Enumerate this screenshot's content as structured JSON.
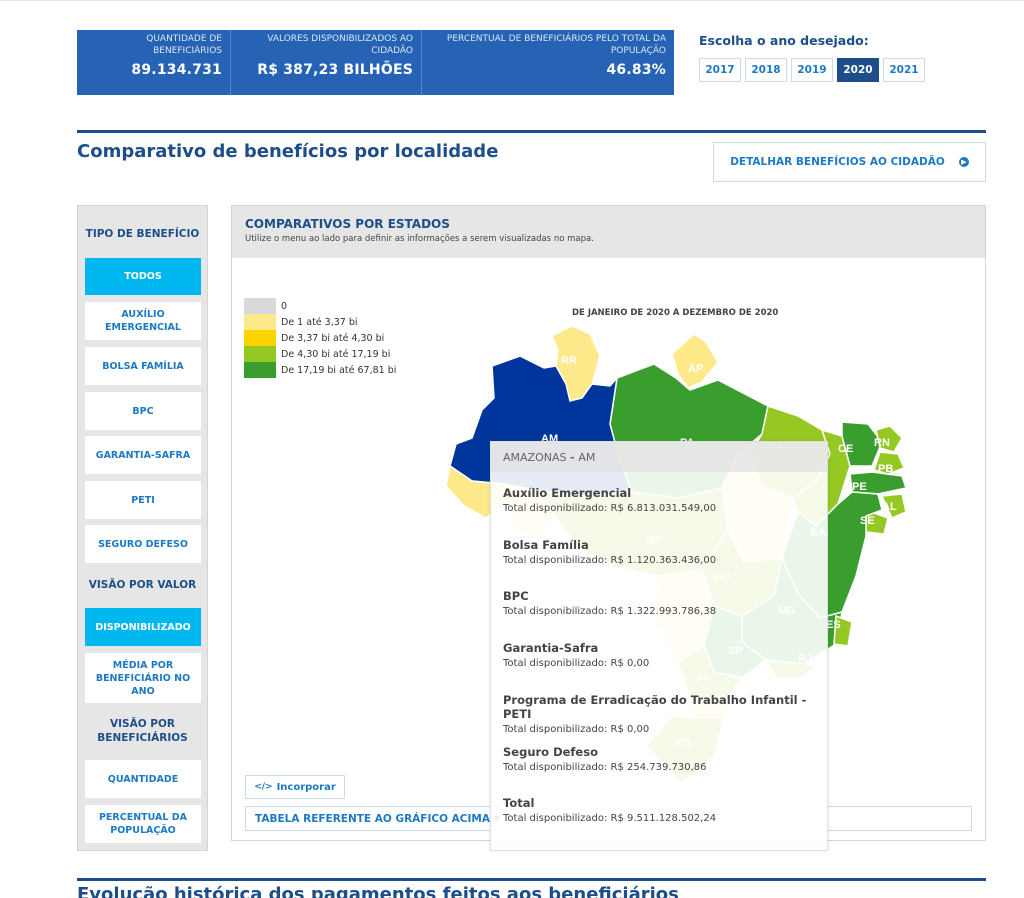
{
  "stats": [
    {
      "label": "QUANTIDADE DE BENEFICIÁRIOS",
      "value": "89.134.731"
    },
    {
      "label": "VALORES DISPONIBILIZADOS AO CIDADÃO",
      "value": "R$ 387,23 BILHÕES"
    },
    {
      "label": "PERCENTUAL DE BENEFICIÁRIOS PELO TOTAL DA POPULAÇÃO",
      "value": "46.83%"
    }
  ],
  "year_selector": {
    "title": "Escolha o ano desejado:",
    "years": [
      "2017",
      "2018",
      "2019",
      "2020",
      "2021"
    ],
    "selected": "2020"
  },
  "section": {
    "title": "Comparativo de benefícios por localidade",
    "detail_button": "DETALHAR BENEFÍCIOS AO CIDADÃO"
  },
  "sidebar": {
    "tipo_title": "TIPO DE BENEFÍCIO",
    "tipo_items": [
      "TODOS",
      "AUXÍLIO EMERGENCIAL",
      "BOLSA FAMÍLIA",
      "BPC",
      "GARANTIA-SAFRA",
      "PETI",
      "SEGURO DEFESO"
    ],
    "valor_title": "VISÃO POR VALOR",
    "valor_items": [
      "DISPONIBILIZADO",
      "MÉDIA POR BENEFICIÁRIO NO ANO"
    ],
    "benef_title": "VISÃO POR BENEFICIÁRIOS",
    "benef_items": [
      "QUANTIDADE",
      "PERCENTUAL DA POPULAÇÃO"
    ]
  },
  "panel": {
    "title": "COMPARATIVOS POR ESTADOS",
    "subtitle": "Utilize o menu ao lado para definir as informações a serem visualizadas no mapa.",
    "period": "DE JANEIRO DE 2020 A DEZEMBRO DE 2020",
    "legend": [
      {
        "label": "0",
        "color": "#d9d9d9"
      },
      {
        "label": "De 1 até 3,37 bi",
        "color": "#fde88a"
      },
      {
        "label": "De 3,37 bi até 4,30 bi",
        "color": "#fdd300"
      },
      {
        "label": "De 4,30 bi até 17,19 bi",
        "color": "#95c822"
      },
      {
        "label": "De 17,19 bi até 67,81 bi",
        "color": "#3a9e2e"
      }
    ],
    "state_labels": [
      "RR",
      "AP",
      "AM",
      "PA",
      "MA",
      "CE",
      "RN",
      "PB",
      "PE",
      "AL",
      "SE",
      "BA",
      "MT",
      "GO",
      "MG",
      "ES",
      "MS",
      "SP",
      "RJ",
      "PR",
      "RS"
    ],
    "embed_button": "Incorporar",
    "table_button": "TABELA REFERENTE AO GRÁFICO ACIMA"
  },
  "tooltip": {
    "state": "AMAZONAS",
    "uf": "AM",
    "items": [
      {
        "name": "Auxílio Emergencial",
        "value": "Total disponibilizado: R$ 6.813.031.549,00"
      },
      {
        "name": "Bolsa Família",
        "value": "Total disponibilizado: R$ 1.120.363.436,00"
      },
      {
        "name": "BPC",
        "value": "Total disponibilizado: R$ 1.322.993.786,38"
      },
      {
        "name": "Garantia-Safra",
        "value": "Total disponibilizado: R$ 0,00"
      },
      {
        "name": "Programa de Erradicação do Trabalho Infantil - PETI",
        "value": "Total disponibilizado: R$ 0,00"
      },
      {
        "name": "Seguro Defeso",
        "value": "Total disponibilizado: R$ 254.739.730,86"
      },
      {
        "name": "Total",
        "value": "Total disponibilizado: R$ 9.511.128.502,24"
      }
    ]
  },
  "next_section": {
    "title": "Evolução histórica dos pagamentos feitos aos beneficiários"
  }
}
